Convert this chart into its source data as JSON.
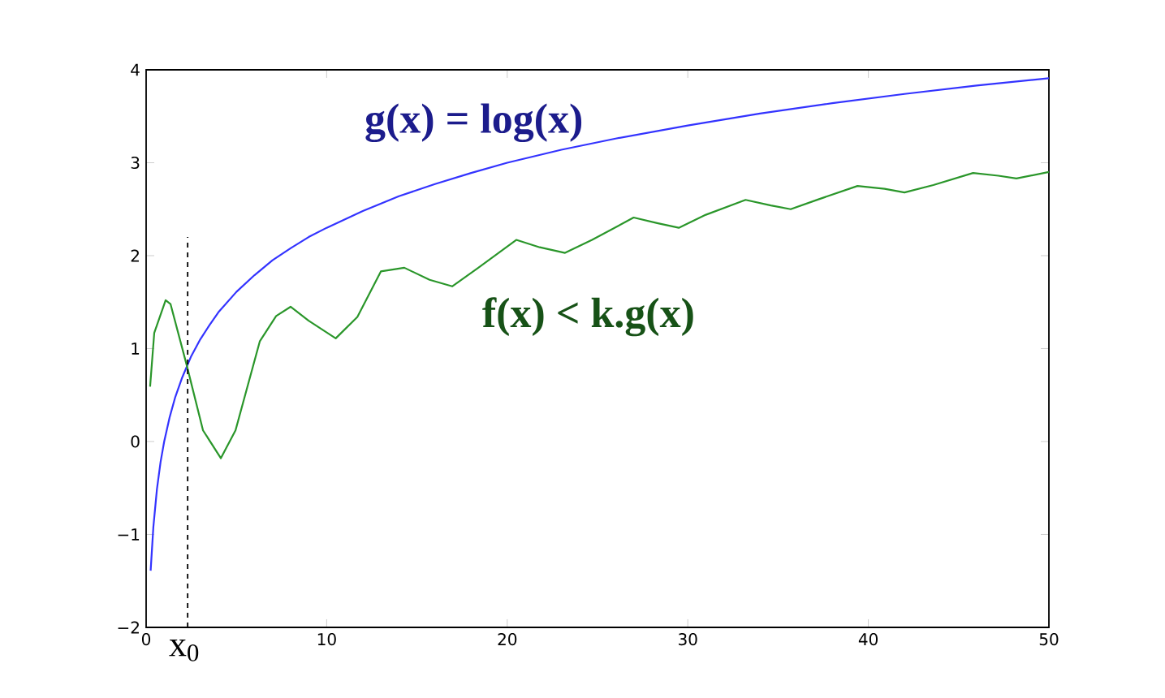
{
  "chart_data": {
    "type": "line",
    "xlim": [
      0,
      50
    ],
    "ylim": [
      -2,
      4
    ],
    "xticks": [
      0,
      10,
      20,
      30,
      40,
      50
    ],
    "yticks": [
      {
        "value": -2,
        "label": "−2"
      },
      {
        "value": -1,
        "label": "−1"
      },
      0,
      1,
      2,
      3,
      4
    ],
    "grid": false,
    "marker": "none",
    "line_style": "solid",
    "series": [
      {
        "name": "g(x) = log(x)",
        "color": "#3333ff",
        "x": [
          0.25,
          0.4,
          0.6,
          0.8,
          1,
          1.3,
          1.6,
          2,
          2.5,
          3,
          3.5,
          4,
          5,
          6,
          7,
          8,
          9,
          10,
          12,
          14,
          16,
          18,
          20,
          23,
          26,
          30,
          34,
          38,
          42,
          46,
          50
        ],
        "values": [
          -1.39,
          -0.92,
          -0.51,
          -0.22,
          0,
          0.26,
          0.47,
          0.69,
          0.92,
          1.1,
          1.25,
          1.39,
          1.61,
          1.79,
          1.95,
          2.08,
          2.2,
          2.3,
          2.48,
          2.64,
          2.77,
          2.89,
          3.0,
          3.14,
          3.26,
          3.4,
          3.53,
          3.64,
          3.74,
          3.83,
          3.91
        ]
      },
      {
        "name": "f(x) < k.g(x)",
        "color": "#2a962a",
        "x": [
          0.22,
          0.45,
          1.08,
          1.35,
          2.25,
          3.15,
          4.14,
          4.95,
          6.3,
          7.2,
          8.0,
          9.0,
          10.5,
          11.7,
          13.0,
          14.3,
          15.7,
          16.95,
          18.4,
          20.5,
          21.8,
          23.2,
          24.7,
          27.0,
          28.3,
          29.5,
          31.0,
          33.2,
          34.6,
          35.7,
          37.3,
          39.4,
          40.9,
          42.0,
          43.6,
          45.8,
          47.2,
          48.2,
          50
        ],
        "values": [
          0.59,
          1.17,
          1.52,
          1.48,
          0.82,
          0.12,
          -0.18,
          0.12,
          1.08,
          1.35,
          1.45,
          1.3,
          1.11,
          1.34,
          1.83,
          1.87,
          1.74,
          1.67,
          1.87,
          2.17,
          2.09,
          2.03,
          2.17,
          2.41,
          2.35,
          2.3,
          2.44,
          2.6,
          2.54,
          2.5,
          2.61,
          2.75,
          2.72,
          2.68,
          2.76,
          2.89,
          2.86,
          2.83,
          2.9
        ]
      }
    ],
    "ref_lines": [
      {
        "axis": "x",
        "value": 2.3,
        "label": "x$_{0}$",
        "color": "#000000",
        "line_style": "dashed"
      }
    ]
  }
}
